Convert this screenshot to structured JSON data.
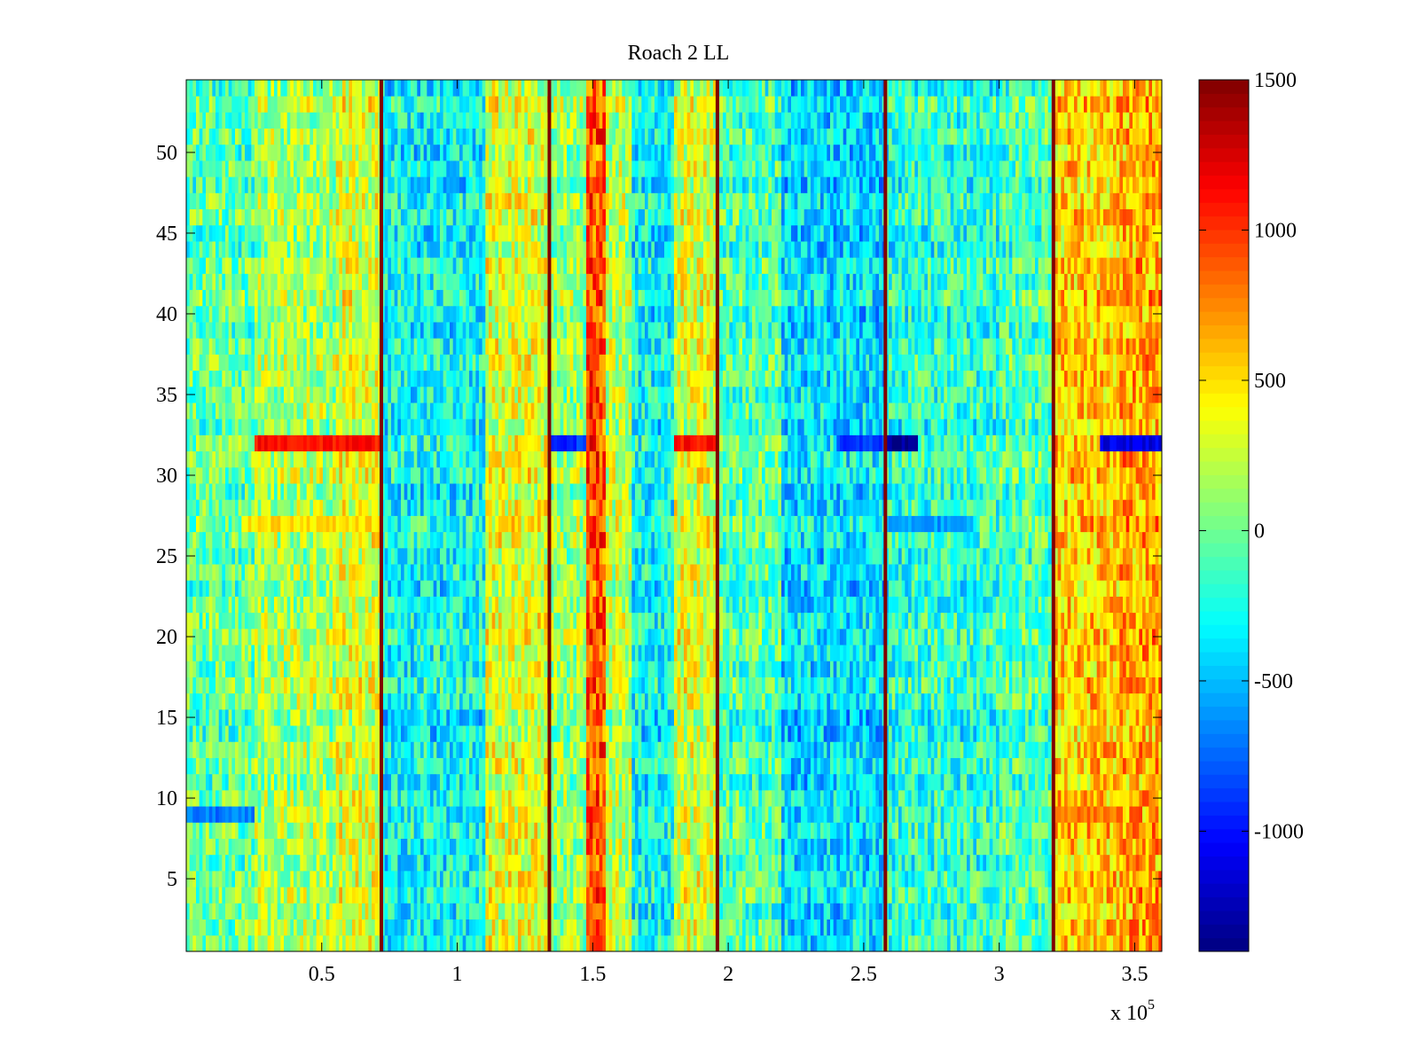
{
  "chart_data": {
    "type": "heatmap",
    "title": "Roach 2 LL",
    "xlabel": "",
    "ylabel": "",
    "x_exponent_label": "x 10",
    "x_exponent_power": "5",
    "xlim": [
      0,
      3.6
    ],
    "ylim": [
      0.5,
      54.5
    ],
    "x_ticks": [
      0.5,
      1,
      1.5,
      2,
      2.5,
      3,
      3.5
    ],
    "x_tick_labels": [
      "0.5",
      "1",
      "1.5",
      "2",
      "2.5",
      "3",
      "3.5"
    ],
    "y_ticks": [
      5,
      10,
      15,
      20,
      25,
      30,
      35,
      40,
      45,
      50
    ],
    "y_tick_labels": [
      "5",
      "10",
      "15",
      "20",
      "25",
      "30",
      "35",
      "40",
      "45",
      "50"
    ],
    "colormap": "jet",
    "clim": [
      -1400,
      1500
    ],
    "colorbar": {
      "ticks": [
        -1000,
        -500,
        0,
        500,
        1000,
        1500
      ],
      "tick_labels": [
        "-1000",
        "-500",
        "0",
        "500",
        "1000",
        "1500"
      ],
      "position": "right"
    },
    "rows": 54,
    "baseline_value": -100,
    "column_profile": [
      {
        "x0": 0.0,
        "x1": 0.25,
        "value": -50
      },
      {
        "x0": 0.25,
        "x1": 0.55,
        "value": 150
      },
      {
        "x0": 0.55,
        "x1": 0.72,
        "value": 300
      },
      {
        "x0": 0.72,
        "x1": 1.1,
        "value": -300
      },
      {
        "x0": 1.1,
        "x1": 1.34,
        "value": 320
      },
      {
        "x0": 1.34,
        "x1": 1.48,
        "value": 100
      },
      {
        "x0": 1.48,
        "x1": 1.55,
        "value": 900
      },
      {
        "x0": 1.55,
        "x1": 1.65,
        "value": 200
      },
      {
        "x0": 1.65,
        "x1": 1.8,
        "value": -300
      },
      {
        "x0": 1.8,
        "x1": 1.96,
        "value": 300
      },
      {
        "x0": 1.96,
        "x1": 2.2,
        "value": -100
      },
      {
        "x0": 2.2,
        "x1": 2.58,
        "value": -400
      },
      {
        "x0": 2.58,
        "x1": 3.0,
        "value": -200
      },
      {
        "x0": 3.0,
        "x1": 3.2,
        "value": -100
      },
      {
        "x0": 3.2,
        "x1": 3.45,
        "value": 550
      },
      {
        "x0": 3.45,
        "x1": 3.6,
        "value": 650
      }
    ],
    "vertical_lines": {
      "x": [
        0.72,
        1.34,
        1.96,
        2.58,
        3.2
      ],
      "value": 1500
    },
    "row_anomalies": [
      {
        "row": 32,
        "x0": 0.25,
        "x1": 0.72,
        "value": 1100
      },
      {
        "row": 32,
        "x0": 1.34,
        "x1": 1.48,
        "value": -900
      },
      {
        "row": 32,
        "x0": 1.8,
        "x1": 1.96,
        "value": 1100
      },
      {
        "row": 32,
        "x0": 2.4,
        "x1": 2.58,
        "value": -900
      },
      {
        "row": 32,
        "x0": 2.58,
        "x1": 2.7,
        "value": -1350
      },
      {
        "row": 32,
        "x0": 3.37,
        "x1": 3.6,
        "value": -1100
      },
      {
        "row": 9,
        "x0": 0.0,
        "x1": 0.25,
        "value": -700
      },
      {
        "row": 9,
        "x0": 3.2,
        "x1": 3.45,
        "value": 800
      },
      {
        "row": 27,
        "x0": 2.58,
        "x1": 2.9,
        "value": -600
      },
      {
        "row": 27,
        "x0": 0.2,
        "x1": 0.72,
        "value": 500
      }
    ]
  }
}
